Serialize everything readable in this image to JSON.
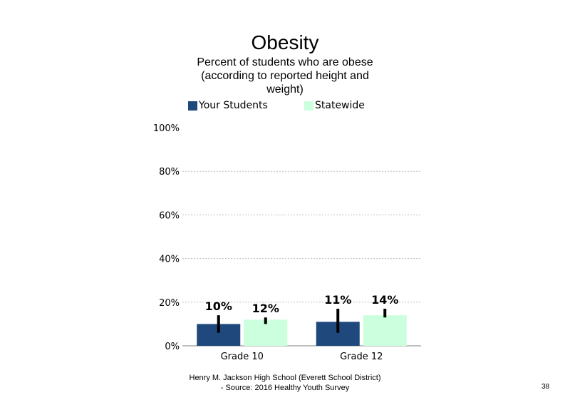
{
  "slide": {
    "title": "Obesity",
    "subtitle_lines": [
      "Percent of students who are obese",
      "(according to reported height and",
      "weight)"
    ],
    "footer_line1": "Henry M. Jackson High School (Everett School District)",
    "footer_line2": "- Source: 2016 Healthy Youth Survey",
    "page_number": "38"
  },
  "colors": {
    "your_students": "#1f497d",
    "statewide": "#ccffdd",
    "error_bar": "#000000",
    "grid": "#bfbfbf"
  },
  "chart_data": {
    "type": "bar",
    "title": "Obesity",
    "categories": [
      "Grade 10",
      "Grade 12"
    ],
    "series": [
      {
        "name": "Your Students",
        "values": [
          10,
          11
        ],
        "labels": [
          "10%",
          "11%"
        ],
        "error_low": [
          6,
          6
        ],
        "error_high": [
          14,
          17
        ]
      },
      {
        "name": "Statewide",
        "values": [
          12,
          14
        ],
        "labels": [
          "12%",
          "14%"
        ],
        "error_low": [
          10,
          13
        ],
        "error_high": [
          13,
          17
        ]
      }
    ],
    "ylim": [
      0,
      100
    ],
    "yticks": [
      0,
      20,
      40,
      60,
      80,
      100
    ],
    "ytick_labels": [
      "0%",
      "20%",
      "40%",
      "60%",
      "80%",
      "100%"
    ],
    "grid": true,
    "legend_position": "top"
  }
}
